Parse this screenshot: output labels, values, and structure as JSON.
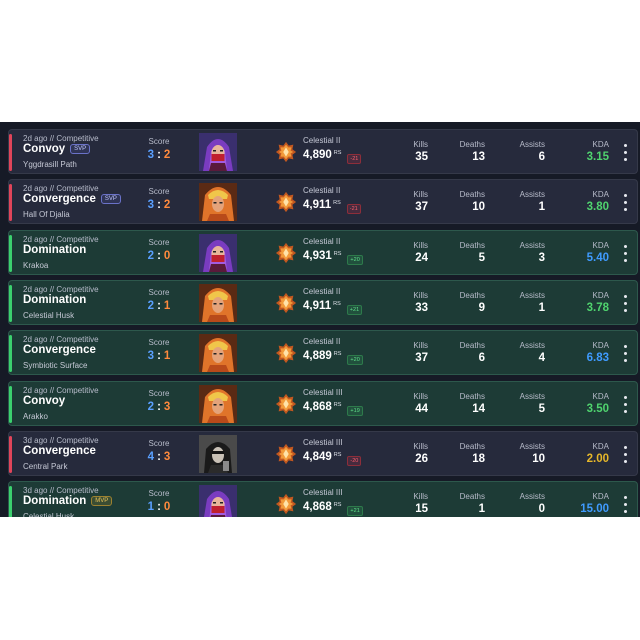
{
  "labels": {
    "score": "Score",
    "kills": "Kills",
    "deaths": "Deaths",
    "assists": "Assists",
    "kda": "KDA",
    "rs_unit": "RS"
  },
  "matches": [
    {
      "result": "loss",
      "time": "2d ago // Competitive",
      "mode": "Convoy",
      "badge": "SVP",
      "map": "Yggdrasill Path",
      "score_a": "3",
      "score_b": "2",
      "hero": "red-mask-hero-portrait",
      "rank": "Celestial II",
      "rs": "4,890",
      "delta": "-21",
      "delta_dir": "down",
      "kills": "35",
      "deaths": "13",
      "assists": "6",
      "kda": "3.15",
      "kda_color": "green"
    },
    {
      "result": "loss",
      "time": "2d ago // Competitive",
      "mode": "Convergence",
      "badge": "SVP",
      "map": "Hall Of Djalia",
      "score_a": "3",
      "score_b": "2",
      "hero": "gold-helm-hero-portrait",
      "rank": "Celestial II",
      "rs": "4,911",
      "delta": "-21",
      "delta_dir": "down",
      "kills": "37",
      "deaths": "10",
      "assists": "1",
      "kda": "3.80",
      "kda_color": "green"
    },
    {
      "result": "win",
      "time": "2d ago // Competitive",
      "mode": "Domination",
      "badge": "",
      "map": "Krakoa",
      "score_a": "2",
      "score_b": "0",
      "hero": "red-mask-hero-portrait",
      "rank": "Celestial II",
      "rs": "4,931",
      "delta": "+20",
      "delta_dir": "up",
      "kills": "24",
      "deaths": "5",
      "assists": "3",
      "kda": "5.40",
      "kda_color": "blue"
    },
    {
      "result": "win",
      "time": "2d ago // Competitive",
      "mode": "Domination",
      "badge": "",
      "map": "Celestial Husk",
      "score_a": "2",
      "score_b": "1",
      "hero": "gold-helm-hero-portrait",
      "rank": "Celestial II",
      "rs": "4,911",
      "delta": "+21",
      "delta_dir": "up",
      "kills": "33",
      "deaths": "9",
      "assists": "1",
      "kda": "3.78",
      "kda_color": "green"
    },
    {
      "result": "win",
      "time": "2d ago // Competitive",
      "mode": "Convergence",
      "badge": "",
      "map": "Symbiotic Surface",
      "score_a": "3",
      "score_b": "1",
      "hero": "gold-helm-hero-portrait",
      "rank": "Celestial II",
      "rs": "4,889",
      "delta": "+20",
      "delta_dir": "up",
      "kills": "37",
      "deaths": "6",
      "assists": "4",
      "kda": "6.83",
      "kda_color": "blue"
    },
    {
      "result": "win",
      "time": "2d ago // Competitive",
      "mode": "Convoy",
      "badge": "",
      "map": "Arakko",
      "score_a": "2",
      "score_b": "3",
      "hero": "gold-helm-hero-portrait",
      "rank": "Celestial III",
      "rs": "4,868",
      "delta": "+19",
      "delta_dir": "up",
      "kills": "44",
      "deaths": "14",
      "assists": "5",
      "kda": "3.50",
      "kda_color": "green"
    },
    {
      "result": "loss",
      "time": "3d ago // Competitive",
      "mode": "Convergence",
      "badge": "",
      "map": "Central Park",
      "score_a": "4",
      "score_b": "3",
      "hero": "dark-hooded-hero-portrait",
      "rank": "Celestial III",
      "rs": "4,849",
      "delta": "-20",
      "delta_dir": "down",
      "kills": "26",
      "deaths": "18",
      "assists": "10",
      "kda": "2.00",
      "kda_color": "gold"
    },
    {
      "result": "win",
      "time": "3d ago // Competitive",
      "mode": "Domination",
      "badge": "MVP",
      "map": "Celestial Husk",
      "score_a": "1",
      "score_b": "0",
      "hero": "red-mask-hero-portrait",
      "rank": "Celestial III",
      "rs": "4,868",
      "delta": "+21",
      "delta_dir": "up",
      "kills": "15",
      "deaths": "1",
      "assists": "0",
      "kda": "15.00",
      "kda_color": "blue"
    }
  ],
  "colors": {
    "win_stripe": "#3bd06e",
    "loss_stripe": "#e1455a",
    "win_bg": "#1d3b36",
    "loss_bg": "#262a3c",
    "score_team": "#5aa0ff",
    "score_enemy": "#ff8a3d"
  },
  "icons": [
    "celestial-rank-icon",
    "more-options-icon"
  ]
}
